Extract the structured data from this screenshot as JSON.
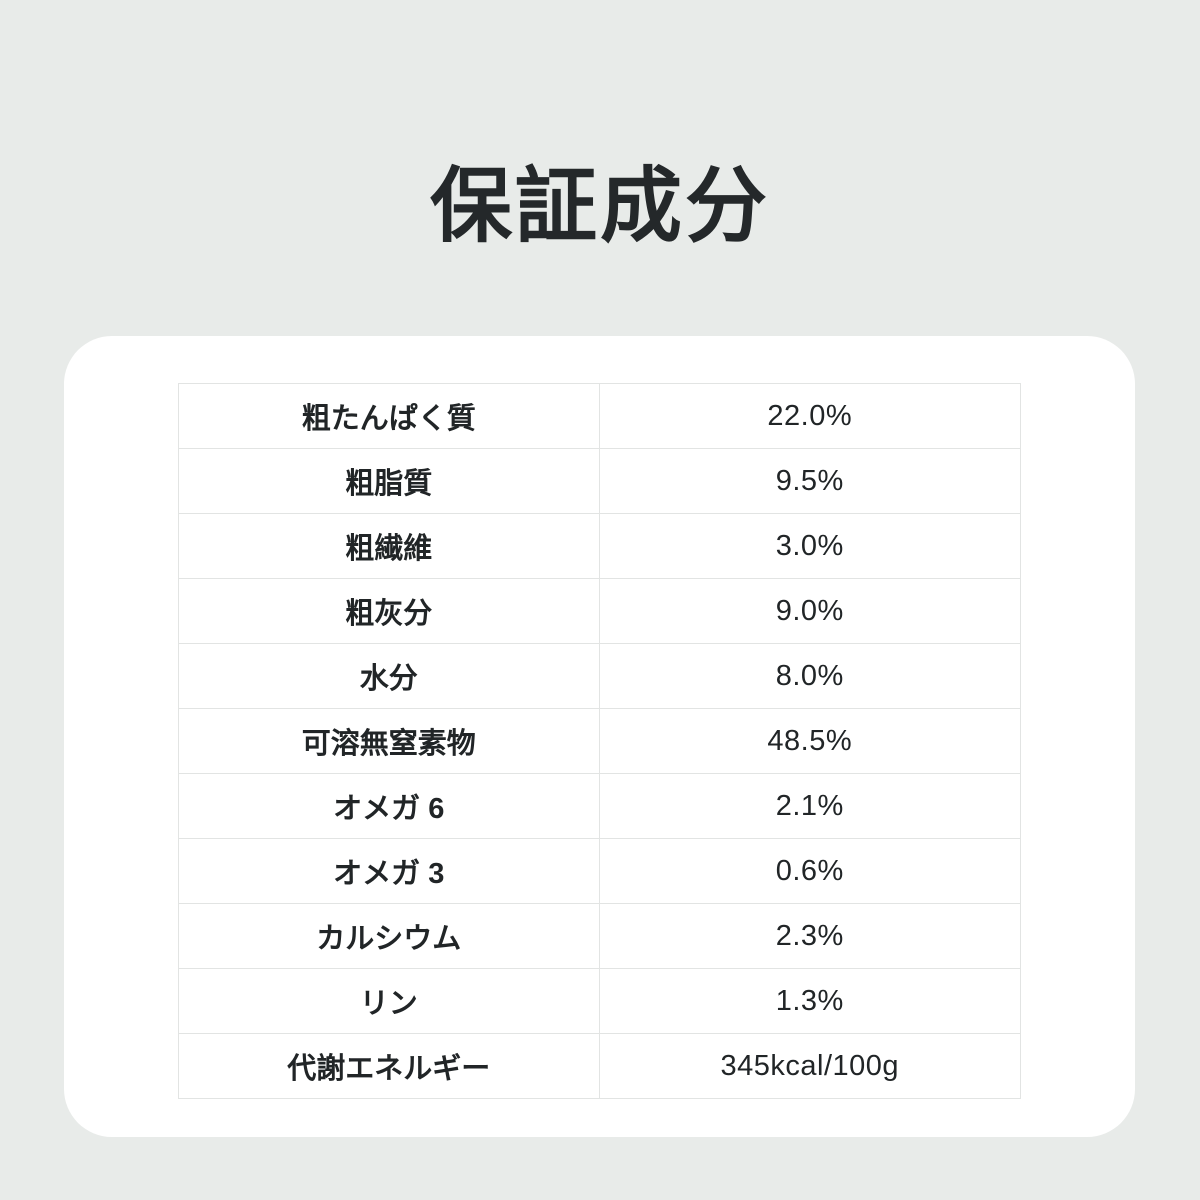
{
  "page": {
    "title": "保証成分",
    "background_color": "#e8ebe9",
    "card_color": "#ffffff",
    "border_color": "#e2e4e3",
    "text_color": "#212527"
  },
  "table": {
    "rows": [
      {
        "label": "粗たんぱく質",
        "value": "22.0%"
      },
      {
        "label": "粗脂質",
        "value": "9.5%"
      },
      {
        "label": "粗繊維",
        "value": "3.0%"
      },
      {
        "label": "粗灰分",
        "value": "9.0%"
      },
      {
        "label": "水分",
        "value": "8.0%"
      },
      {
        "label": "可溶無窒素物",
        "value": "48.5%"
      },
      {
        "label": "オメガ 6",
        "value": "2.1%"
      },
      {
        "label": "オメガ 3",
        "value": "0.6%"
      },
      {
        "label": "カルシウム",
        "value": "2.3%"
      },
      {
        "label": "リン",
        "value": "1.3%"
      },
      {
        "label": "代謝エネルギー",
        "value": "345kcal/100g"
      }
    ]
  }
}
